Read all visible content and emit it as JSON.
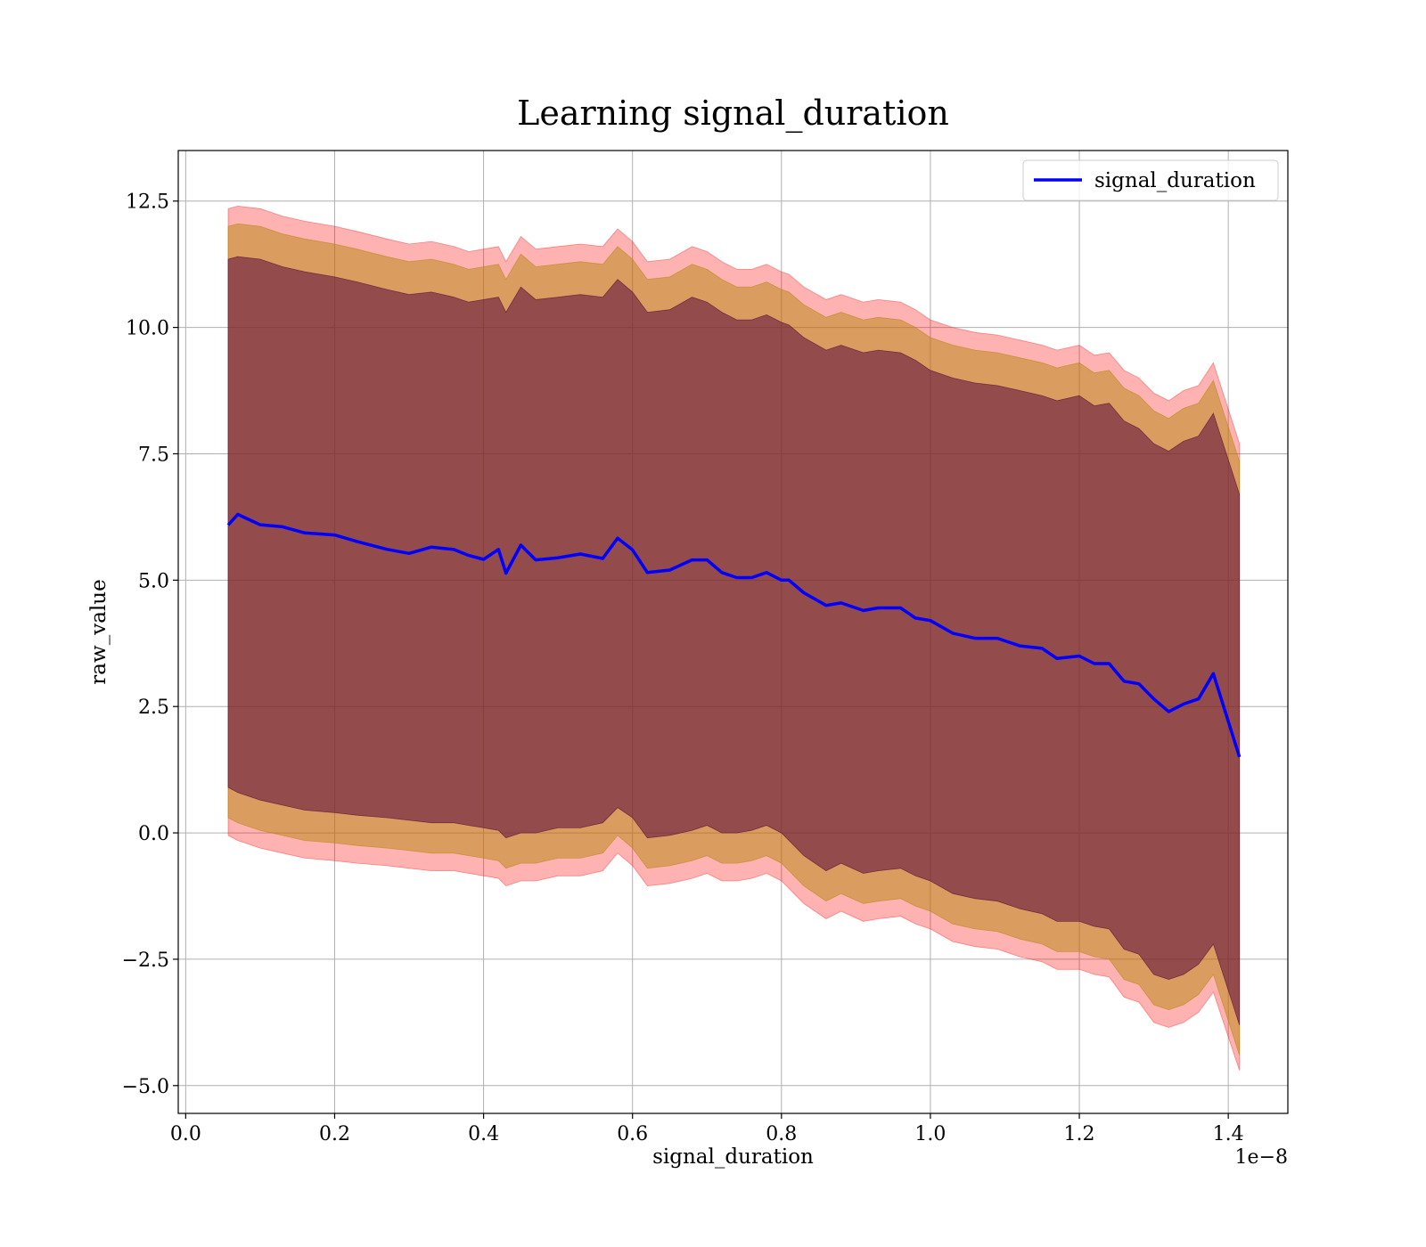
{
  "chart_data": {
    "type": "line",
    "title": "Learning signal_duration",
    "xlabel": "signal_duration",
    "ylabel": "raw_value",
    "x_offset_label": "1e−8",
    "xlim": [
      -0.01,
      1.48
    ],
    "ylim": [
      -5.55,
      13.5
    ],
    "x_ticks": [
      0.0,
      0.2,
      0.4,
      0.6,
      0.8,
      1.0,
      1.2,
      1.4
    ],
    "x_tick_labels": [
      "0.0",
      "0.2",
      "0.4",
      "0.6",
      "0.8",
      "1.0",
      "1.2",
      "1.4"
    ],
    "y_ticks": [
      -5.0,
      -2.5,
      0.0,
      2.5,
      5.0,
      7.5,
      10.0,
      12.5
    ],
    "y_tick_labels": [
      "−5.0",
      "−2.5",
      "0.0",
      "2.5",
      "5.0",
      "7.5",
      "10.0",
      "12.5"
    ],
    "grid": true,
    "legend_position": "top-right",
    "colors": {
      "line": "#0000ff",
      "band_outer": "#ff0000",
      "band_middle": "#b8860b",
      "band_inner": "#5a0a3a",
      "grid": "#b0b0b0"
    },
    "x": [
      0.057,
      0.07,
      0.1,
      0.13,
      0.16,
      0.2,
      0.23,
      0.27,
      0.3,
      0.33,
      0.36,
      0.38,
      0.4,
      0.42,
      0.43,
      0.45,
      0.47,
      0.5,
      0.53,
      0.56,
      0.58,
      0.6,
      0.62,
      0.65,
      0.68,
      0.7,
      0.72,
      0.74,
      0.76,
      0.78,
      0.8,
      0.81,
      0.83,
      0.86,
      0.88,
      0.91,
      0.93,
      0.96,
      0.98,
      1.0,
      1.03,
      1.06,
      1.09,
      1.12,
      1.15,
      1.17,
      1.2,
      1.22,
      1.24,
      1.26,
      1.28,
      1.3,
      1.32,
      1.34,
      1.36,
      1.38,
      1.415
    ],
    "series": [
      {
        "name": "signal_duration",
        "values": [
          6.15,
          6.25,
          6.15,
          6.05,
          5.95,
          5.9,
          5.75,
          5.65,
          5.55,
          5.65,
          5.55,
          5.45,
          5.45,
          5.55,
          5.1,
          5.7,
          5.35,
          5.45,
          5.5,
          5.45,
          5.8,
          5.6,
          5.15,
          5.2,
          5.4,
          5.4,
          5.15,
          5.05,
          5.05,
          5.15,
          5.0,
          5.0,
          4.75,
          4.5,
          4.55,
          4.4,
          4.45,
          4.45,
          4.25,
          4.2,
          3.95,
          3.85,
          3.85,
          3.7,
          3.65,
          3.45,
          3.5,
          3.35,
          3.35,
          3.0,
          2.95,
          2.65,
          2.4,
          2.55,
          2.65,
          3.15,
          1.5
        ]
      }
    ],
    "bands": [
      {
        "lower": [
          -0.05,
          -0.15,
          -0.3,
          -0.4,
          -0.5,
          -0.55,
          -0.6,
          -0.65,
          -0.7,
          -0.75,
          -0.75,
          -0.8,
          -0.85,
          -0.9,
          -1.05,
          -0.95,
          -0.95,
          -0.85,
          -0.85,
          -0.75,
          -0.4,
          -0.65,
          -1.05,
          -1.0,
          -0.9,
          -0.8,
          -0.95,
          -0.95,
          -0.9,
          -0.8,
          -0.95,
          -1.1,
          -1.4,
          -1.7,
          -1.55,
          -1.75,
          -1.7,
          -1.65,
          -1.8,
          -1.9,
          -2.15,
          -2.25,
          -2.3,
          -2.45,
          -2.55,
          -2.7,
          -2.7,
          -2.8,
          -2.85,
          -3.25,
          -3.35,
          -3.75,
          -3.85,
          -3.75,
          -3.55,
          -3.15,
          -4.7
        ],
        "upper": [
          12.35,
          12.4,
          12.35,
          12.2,
          12.1,
          12.0,
          11.9,
          11.75,
          11.65,
          11.7,
          11.6,
          11.5,
          11.55,
          11.6,
          11.3,
          11.8,
          11.55,
          11.6,
          11.65,
          11.6,
          11.95,
          11.7,
          11.3,
          11.35,
          11.6,
          11.5,
          11.3,
          11.15,
          11.15,
          11.25,
          11.1,
          11.05,
          10.8,
          10.55,
          10.65,
          10.5,
          10.55,
          10.5,
          10.35,
          10.15,
          10.0,
          9.9,
          9.85,
          9.75,
          9.65,
          9.55,
          9.65,
          9.45,
          9.5,
          9.15,
          9.0,
          8.7,
          8.55,
          8.75,
          8.85,
          9.3,
          7.7
        ]
      },
      {
        "lower": [
          0.3,
          0.2,
          0.05,
          -0.05,
          -0.15,
          -0.2,
          -0.25,
          -0.3,
          -0.35,
          -0.4,
          -0.4,
          -0.45,
          -0.5,
          -0.55,
          -0.7,
          -0.6,
          -0.6,
          -0.5,
          -0.5,
          -0.4,
          -0.05,
          -0.3,
          -0.7,
          -0.65,
          -0.55,
          -0.45,
          -0.6,
          -0.6,
          -0.55,
          -0.45,
          -0.6,
          -0.75,
          -1.05,
          -1.35,
          -1.2,
          -1.4,
          -1.35,
          -1.3,
          -1.45,
          -1.55,
          -1.8,
          -1.9,
          -1.95,
          -2.1,
          -2.2,
          -2.35,
          -2.35,
          -2.45,
          -2.5,
          -2.9,
          -3.0,
          -3.4,
          -3.5,
          -3.4,
          -3.2,
          -2.8,
          -4.4
        ]
      },
      {
        "lower": [
          0.9,
          0.8,
          0.65,
          0.55,
          0.45,
          0.4,
          0.35,
          0.3,
          0.25,
          0.2,
          0.2,
          0.15,
          0.1,
          0.05,
          -0.1,
          0.0,
          0.0,
          0.1,
          0.1,
          0.2,
          0.5,
          0.3,
          -0.1,
          -0.05,
          0.05,
          0.15,
          0.0,
          0.0,
          0.05,
          0.15,
          0.0,
          -0.15,
          -0.45,
          -0.75,
          -0.6,
          -0.8,
          -0.75,
          -0.7,
          -0.85,
          -0.95,
          -1.2,
          -1.3,
          -1.35,
          -1.5,
          -1.6,
          -1.75,
          -1.75,
          -1.85,
          -1.9,
          -2.3,
          -2.4,
          -2.8,
          -2.9,
          -2.8,
          -2.6,
          -2.2,
          -3.8
        ],
        "upper": [
          11.35,
          11.4,
          11.35,
          11.2,
          11.1,
          11.0,
          10.9,
          10.75,
          10.65,
          10.7,
          10.6,
          10.5,
          10.55,
          10.6,
          10.3,
          10.8,
          10.55,
          10.6,
          10.65,
          10.6,
          10.95,
          10.7,
          10.3,
          10.35,
          10.6,
          10.5,
          10.3,
          10.15,
          10.15,
          10.25,
          10.1,
          10.05,
          9.8,
          9.55,
          9.65,
          9.5,
          9.55,
          9.5,
          9.35,
          9.15,
          9.0,
          8.9,
          8.85,
          8.75,
          8.65,
          8.55,
          8.65,
          8.45,
          8.5,
          8.15,
          8.0,
          7.7,
          7.55,
          7.75,
          7.85,
          8.3,
          6.7
        ]
      }
    ]
  }
}
